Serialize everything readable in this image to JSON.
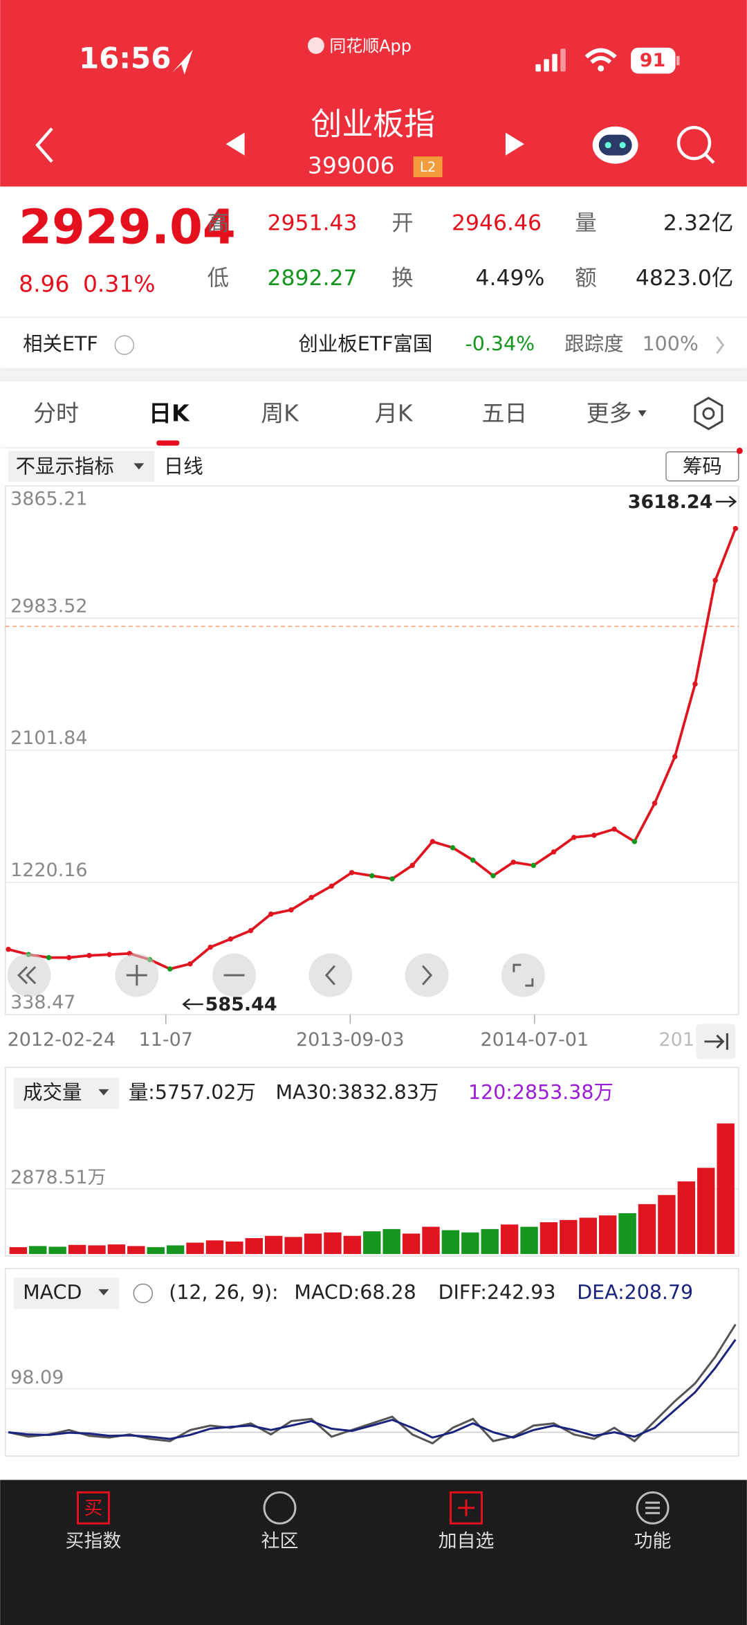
{
  "status": {
    "time": "16:56",
    "app": "同花顺App",
    "battery": "91"
  },
  "header": {
    "title": "创业板指",
    "code": "399006",
    "badge": "L2"
  },
  "quote": {
    "price": "2929.04",
    "change": "8.96",
    "change_pct": "0.31%",
    "high_label": "高",
    "high": "2951.43",
    "open_label": "开",
    "open": "2946.46",
    "volume_label": "量",
    "volume": "2.32亿",
    "low_label": "低",
    "low": "2892.27",
    "turnover_label": "换",
    "turnover": "4.49%",
    "amount_label": "额",
    "amount": "4823.0亿"
  },
  "etf": {
    "label": "相关ETF",
    "name": "创业板ETF富国",
    "change": "-0.34%",
    "tracking_label": "跟踪度",
    "tracking": "100%"
  },
  "tabs": [
    "分时",
    "日K",
    "周K",
    "月K",
    "五日",
    "更多"
  ],
  "toolbar": {
    "indicator": "不显示指标",
    "period": "日线",
    "chips": "筹码"
  },
  "chart_data": [
    {
      "type": "line",
      "color": "#e0151f",
      "values": [
        774,
        739,
        719,
        719,
        733,
        739,
        746,
        705,
        643,
        677,
        788,
        843,
        899,
        1009,
        1037,
        1120,
        1196,
        1286,
        1265,
        1244,
        1334,
        1493,
        1452,
        1369,
        1265,
        1355,
        1334,
        1424,
        1521,
        1535,
        1576,
        1493,
        1749,
        2060,
        2544,
        3236,
        3582
      ],
      "ylim": [
        338.47,
        3865.21
      ],
      "yticks": [
        338.47,
        1220.16,
        2101.84,
        2983.52,
        3865.21
      ],
      "grid": true,
      "annotations": {
        "high": "3618.24",
        "low": "585.44"
      },
      "date_labels": [
        "2012-02-24",
        "11-07",
        "2013-09-03",
        "2014-07-01",
        "201"
      ]
    },
    {
      "type": "bar",
      "label": "成交量",
      "info": "量:5757.02万",
      "ma30": "MA30:3832.83万",
      "ma120": "120:2853.38万",
      "values": [
        300,
        350,
        320,
        400,
        380,
        420,
        350,
        300,
        380,
        500,
        600,
        550,
        700,
        800,
        750,
        900,
        950,
        800,
        1000,
        1100,
        900,
        1200,
        1050,
        950,
        1100,
        1300,
        1200,
        1400,
        1500,
        1600,
        1700,
        1800,
        2200,
        2600,
        3200,
        3800,
        5757.02
      ],
      "ylim": [
        0,
        7770
      ],
      "yticks": [
        {
          "value": 2878.51,
          "label": "2878.51万"
        }
      ],
      "grid": true
    },
    {
      "type": "line",
      "label": "MACD",
      "params": "(12, 26, 9):",
      "macd": "MACD:68.28",
      "diff": "DIFF:242.93",
      "dea": "DEA:208.79",
      "series": [
        {
          "color": "#555555",
          "values": [
            0,
            -10,
            -5,
            5,
            -8,
            -12,
            -5,
            -15,
            -20,
            5,
            15,
            10,
            20,
            -5,
            25,
            30,
            -10,
            5,
            20,
            35,
            -5,
            -25,
            10,
            30,
            -20,
            -10,
            15,
            20,
            -5,
            -15,
            10,
            -20,
            25,
            70,
            110,
            170,
            242.93
          ]
        },
        {
          "color": "#1a237e",
          "values": [
            0,
            -5,
            -6,
            -1,
            -3,
            -8,
            -7,
            -10,
            -15,
            -6,
            8,
            12,
            15,
            5,
            15,
            25,
            8,
            3,
            15,
            28,
            10,
            -12,
            0,
            20,
            0,
            -12,
            5,
            15,
            5,
            -8,
            0,
            -10,
            10,
            50,
            90,
            145,
            208.79
          ]
        }
      ],
      "ylim": [
        -53.7,
        273.2
      ],
      "yticks": [
        98.09
      ],
      "grid": true
    }
  ],
  "nav": [
    {
      "icon": "买",
      "label": "买指数"
    },
    {
      "label": "社区"
    },
    {
      "label": "加自选"
    },
    {
      "label": "功能"
    }
  ]
}
